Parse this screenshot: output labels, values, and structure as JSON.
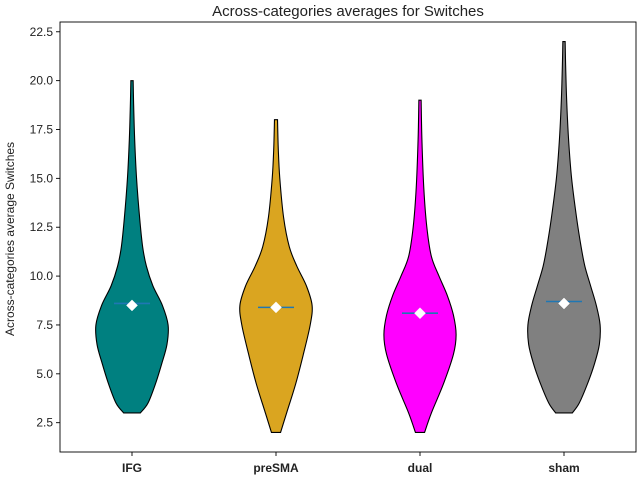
{
  "chart_data": {
    "type": "violin",
    "title": "Across-categories averages for Switches",
    "xlabel": "",
    "ylabel": "Across-categories average Switches",
    "ylim": [
      1.0,
      23.0
    ],
    "yticks": [
      2.5,
      5.0,
      7.5,
      10.0,
      12.5,
      15.0,
      17.5,
      20.0,
      22.5
    ],
    "ytick_labels": [
      "2.5",
      "5.0",
      "7.5",
      "10.0",
      "12.5",
      "15.0",
      "17.5",
      "20.0",
      "22.5"
    ],
    "categories": [
      "IFG",
      "preSMA",
      "dual",
      "sham"
    ],
    "grid": false,
    "series": [
      {
        "category": "IFG",
        "color": "#008080",
        "min": 3.0,
        "max": 20.0,
        "mean": 8.5,
        "median": 8.6,
        "profile": [
          [
            3.0,
            0.22
          ],
          [
            3.5,
            0.42
          ],
          [
            4.5,
            0.62
          ],
          [
            5.5,
            0.78
          ],
          [
            6.5,
            0.92
          ],
          [
            7.5,
            0.95
          ],
          [
            8.5,
            0.8
          ],
          [
            9.5,
            0.55
          ],
          [
            10.5,
            0.38
          ],
          [
            11.5,
            0.28
          ],
          [
            13.0,
            0.2
          ],
          [
            15.0,
            0.12
          ],
          [
            17.0,
            0.07
          ],
          [
            19.0,
            0.04
          ],
          [
            20.0,
            0.03
          ]
        ]
      },
      {
        "category": "preSMA",
        "color": "#DAA520",
        "min": 2.0,
        "max": 18.0,
        "mean": 8.4,
        "median": 8.4,
        "profile": [
          [
            2.0,
            0.12
          ],
          [
            3.0,
            0.28
          ],
          [
            4.5,
            0.52
          ],
          [
            6.0,
            0.72
          ],
          [
            7.5,
            0.9
          ],
          [
            8.5,
            0.95
          ],
          [
            9.5,
            0.8
          ],
          [
            10.5,
            0.55
          ],
          [
            11.5,
            0.35
          ],
          [
            13.0,
            0.2
          ],
          [
            15.0,
            0.1
          ],
          [
            16.5,
            0.06
          ],
          [
            18.0,
            0.04
          ]
        ]
      },
      {
        "category": "dual",
        "color": "#FF00FF",
        "min": 2.0,
        "max": 19.0,
        "mean": 8.1,
        "median": 8.1,
        "profile": [
          [
            2.0,
            0.12
          ],
          [
            3.0,
            0.3
          ],
          [
            4.5,
            0.62
          ],
          [
            6.0,
            0.88
          ],
          [
            7.0,
            0.95
          ],
          [
            8.0,
            0.88
          ],
          [
            9.0,
            0.72
          ],
          [
            10.0,
            0.5
          ],
          [
            11.0,
            0.3
          ],
          [
            12.5,
            0.18
          ],
          [
            14.5,
            0.1
          ],
          [
            17.0,
            0.05
          ],
          [
            19.0,
            0.03
          ]
        ]
      },
      {
        "category": "sham",
        "color": "#808080",
        "min": 3.0,
        "max": 22.0,
        "mean": 8.6,
        "median": 8.7,
        "profile": [
          [
            3.0,
            0.22
          ],
          [
            3.5,
            0.4
          ],
          [
            4.5,
            0.62
          ],
          [
            5.5,
            0.8
          ],
          [
            6.5,
            0.93
          ],
          [
            7.5,
            0.95
          ],
          [
            8.5,
            0.85
          ],
          [
            9.5,
            0.7
          ],
          [
            10.5,
            0.55
          ],
          [
            11.5,
            0.45
          ],
          [
            13.0,
            0.33
          ],
          [
            15.0,
            0.2
          ],
          [
            17.0,
            0.12
          ],
          [
            19.0,
            0.07
          ],
          [
            21.0,
            0.04
          ],
          [
            22.0,
            0.03
          ]
        ]
      }
    ],
    "mean_marker_color": "#ffffff",
    "median_line_color": "#1f77b4"
  }
}
